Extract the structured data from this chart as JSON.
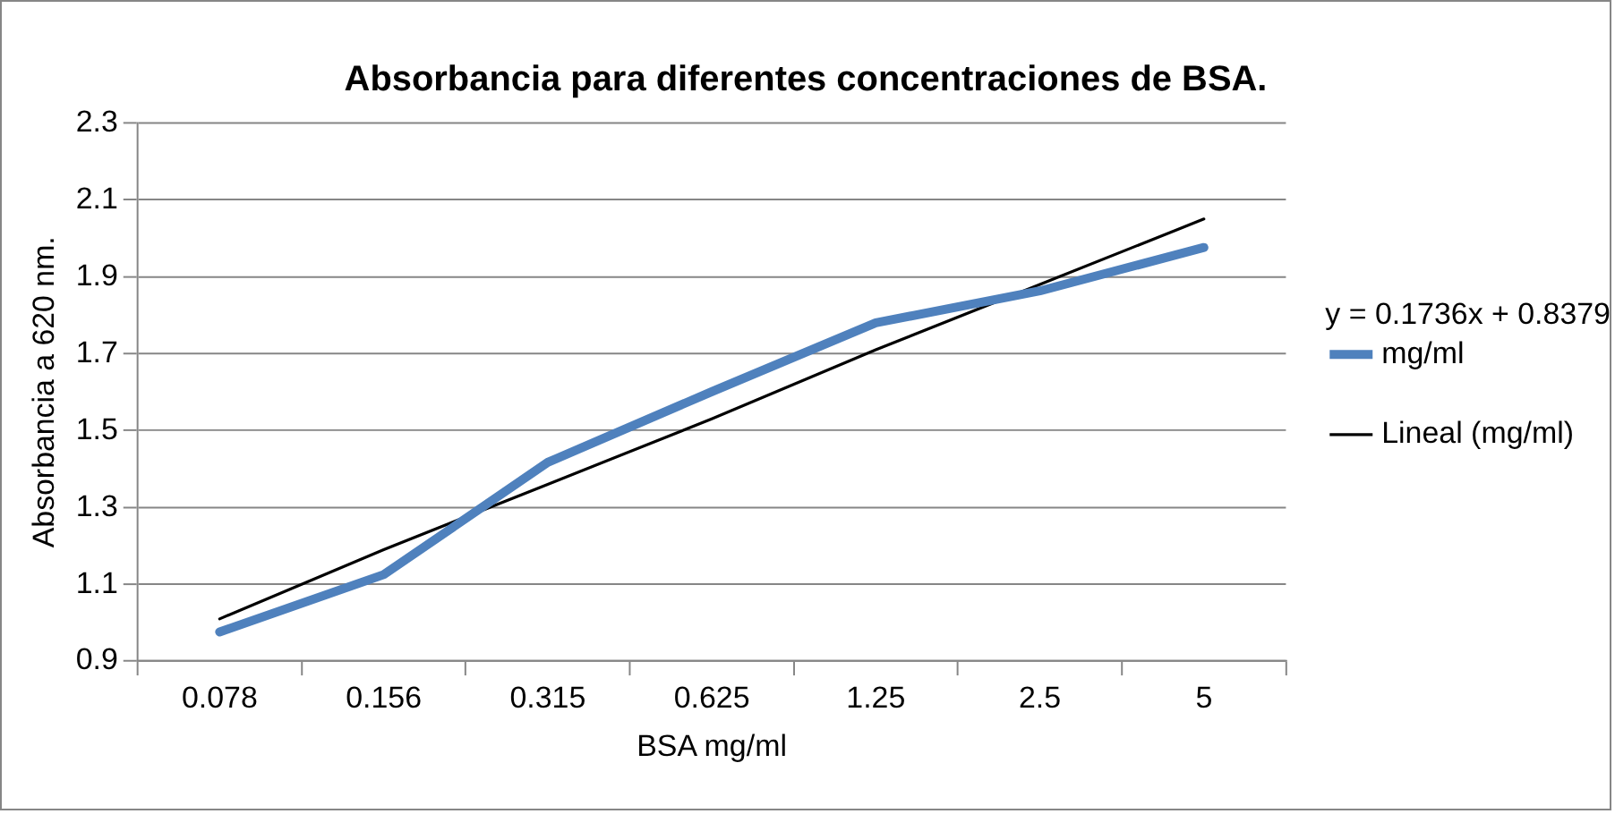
{
  "chart_data": {
    "type": "line",
    "title": "Absorbancia para diferentes concentraciones de BSA.",
    "xlabel": "BSA mg/ml",
    "ylabel": "Absorbancia a 620 nm.",
    "categories": [
      "0.078",
      "0.156",
      "0.315",
      "0.625",
      "1.25",
      "2.5",
      "5"
    ],
    "series": [
      {
        "name": "mg/ml",
        "color": "#4f81bd",
        "values": [
          0.976,
          1.125,
          1.417,
          1.601,
          1.78,
          1.863,
          1.976
        ]
      },
      {
        "name": "Lineal (mg/ml)",
        "color": "#000000",
        "values": [
          1.01,
          1.19,
          1.36,
          1.53,
          1.71,
          1.88,
          2.05
        ]
      }
    ],
    "annotations": [
      "y = 0.1736x + 0.8379"
    ],
    "ylim": [
      0.9,
      2.3
    ],
    "yticks": [
      0.9,
      1.1,
      1.3,
      1.5,
      1.7,
      1.9,
      2.1,
      2.3
    ],
    "grid": "y",
    "legend": "right",
    "marker": "none",
    "line_style": "solid"
  }
}
